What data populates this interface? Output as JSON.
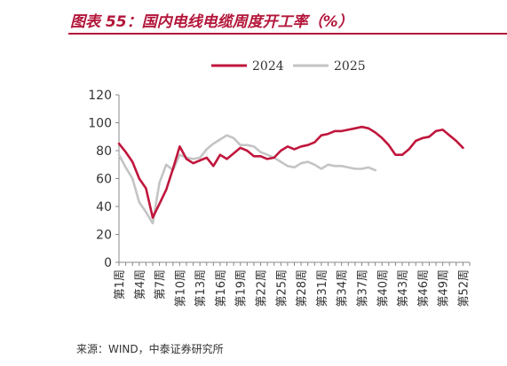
{
  "header": {
    "title": "图表 55：国内电线电缆周度开工率（%）"
  },
  "source": "来源：WIND，中泰证券研究所",
  "colors": {
    "accent": "#b3163a",
    "series_2024": "#c0163c",
    "series_2025": "#c4c4c4",
    "axis": "#888888",
    "text": "#333333"
  },
  "chart_data": {
    "type": "line",
    "title": "",
    "xlabel": "",
    "ylabel": "",
    "ylim": [
      0,
      120
    ],
    "yticks": [
      0,
      20,
      40,
      60,
      80,
      100,
      120
    ],
    "grid": false,
    "legend_position": "top",
    "x_tick_labels": [
      "第1周",
      "第4周",
      "第7周",
      "第10周",
      "第13周",
      "第16周",
      "第19周",
      "第22周",
      "第25周",
      "第28周",
      "第31周",
      "第34周",
      "第37周",
      "第40周",
      "第43周",
      "第46周",
      "第49周",
      "第52周"
    ],
    "x_tick_weeks": [
      1,
      4,
      7,
      10,
      13,
      16,
      19,
      22,
      25,
      28,
      31,
      34,
      37,
      40,
      43,
      46,
      49,
      52
    ],
    "series": [
      {
        "name": "2024",
        "x": [
          1,
          2,
          3,
          4,
          5,
          6,
          7,
          8,
          9,
          10,
          11,
          12,
          13,
          14,
          15,
          16,
          17,
          18,
          19,
          20,
          21,
          22,
          23,
          24,
          25,
          26,
          27,
          28,
          29,
          30,
          31,
          32,
          33,
          34,
          35,
          36,
          37,
          38,
          39,
          40,
          41,
          42,
          43,
          44,
          45,
          46,
          47,
          48,
          49,
          50,
          51,
          52
        ],
        "values": [
          85,
          79,
          72,
          60,
          53,
          32,
          42,
          52,
          67,
          83,
          74,
          71,
          73,
          75,
          69,
          77,
          74,
          78,
          82,
          80,
          76,
          76,
          74,
          75,
          80,
          83,
          81,
          83,
          84,
          86,
          91,
          92,
          94,
          94,
          95,
          96,
          97,
          96,
          93,
          89,
          84,
          77,
          77,
          81,
          87,
          89,
          90,
          94,
          95,
          91,
          87,
          82
        ]
      },
      {
        "name": "2025",
        "x": [
          1,
          2,
          3,
          4,
          5,
          6,
          7,
          8,
          9,
          10,
          11,
          12,
          13,
          14,
          15,
          16,
          17,
          18,
          19,
          20,
          21,
          22,
          23,
          24,
          25,
          26,
          27,
          28,
          29,
          30,
          31,
          32,
          33,
          34,
          35,
          36,
          37,
          38,
          39
        ],
        "values": [
          77,
          68,
          60,
          43,
          36,
          28,
          57,
          70,
          66,
          77,
          75,
          74,
          75,
          81,
          85,
          88,
          91,
          89,
          84,
          84,
          83,
          79,
          77,
          75,
          72,
          69,
          68,
          71,
          72,
          70,
          67,
          70,
          69,
          69,
          68,
          67,
          67,
          68,
          66
        ]
      }
    ]
  }
}
